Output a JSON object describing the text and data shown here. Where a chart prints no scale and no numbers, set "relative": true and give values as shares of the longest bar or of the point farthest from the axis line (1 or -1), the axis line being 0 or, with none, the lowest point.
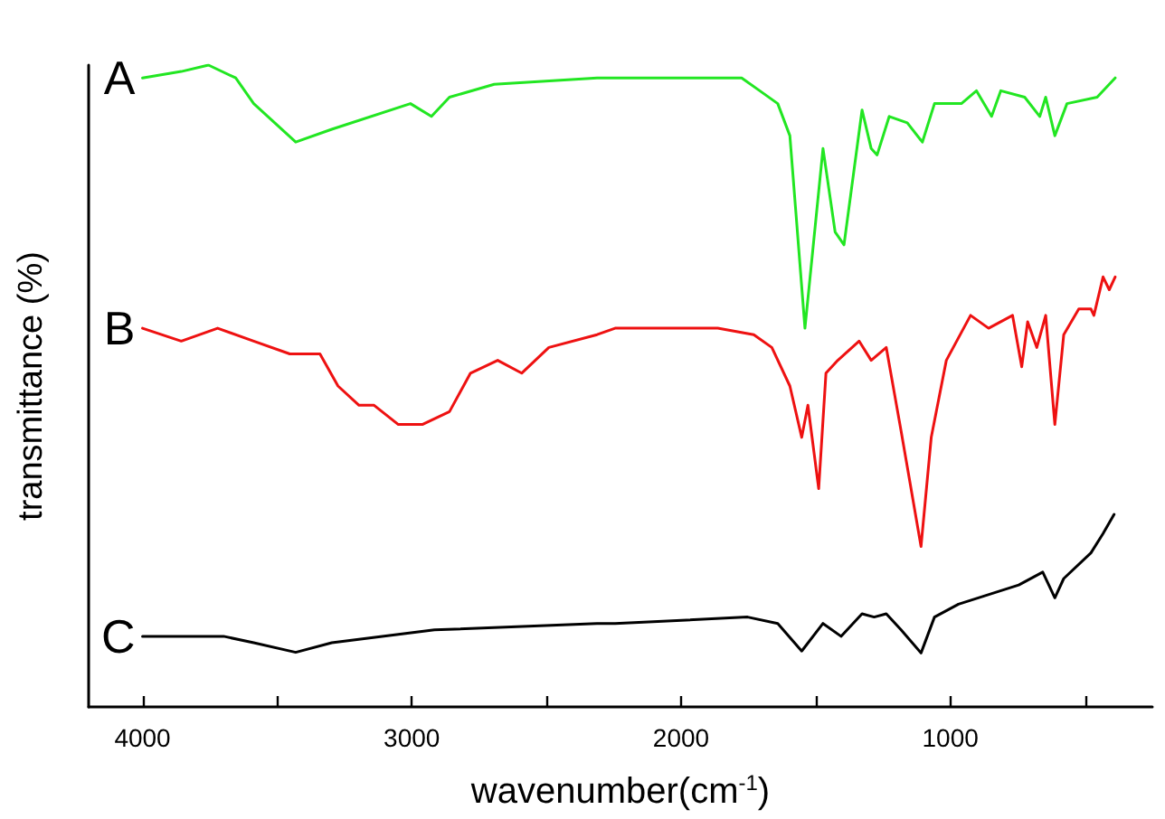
{
  "chart_data": {
    "type": "line",
    "relative": true,
    "xlabel": "wavenumber(cm$^{-1}$)",
    "ylabel": "transmittance (%)",
    "xlim": [
      4200,
      250
    ],
    "xticks": [
      4000,
      {
        "value": 3500,
        "label": null
      },
      3000,
      {
        "value": 2500,
        "label": null
      },
      2000,
      {
        "value": 1500,
        "label": null
      },
      1000,
      {
        "value": 500,
        "label": null
      }
    ],
    "grid": false,
    "legend": false,
    "marker": "none",
    "line_style": "solid",
    "series": [
      {
        "name": "A",
        "color": "#22e622",
        "x": [
          4000,
          3856,
          3755,
          3654,
          3587,
          3431,
          3297,
          3005,
          2927,
          2860,
          2694,
          2312,
          2245,
          1775,
          1708,
          1641,
          1596,
          1540,
          1473,
          1428,
          1395,
          1328,
          1294,
          1272,
          1227,
          1160,
          1104,
          1059,
          959,
          903,
          847,
          813,
          724,
          668,
          646,
          612,
          567,
          455,
          388
        ],
        "values": [
          0.98,
          0.99,
          1.0,
          0.98,
          0.94,
          0.88,
          0.9,
          0.94,
          0.92,
          0.95,
          0.97,
          0.98,
          0.98,
          0.98,
          0.96,
          0.94,
          0.89,
          0.59,
          0.87,
          0.74,
          0.72,
          0.93,
          0.87,
          0.86,
          0.92,
          0.91,
          0.88,
          0.94,
          0.94,
          0.96,
          0.92,
          0.96,
          0.95,
          0.92,
          0.95,
          0.89,
          0.94,
          0.95,
          0.98
        ]
      },
      {
        "name": "B",
        "color": "#ee1111",
        "x": [
          4000,
          3856,
          3721,
          3587,
          3453,
          3341,
          3274,
          3196,
          3140,
          3050,
          2961,
          2860,
          2782,
          2681,
          2592,
          2491,
          2312,
          2245,
          1864,
          1730,
          1663,
          1596,
          1552,
          1529,
          1489,
          1462,
          1418,
          1339,
          1294,
          1238,
          1183,
          1109,
          1071,
          1015,
          925,
          858,
          769,
          735,
          713,
          679,
          646,
          612,
          579,
          523,
          478,
          467,
          433,
          410,
          388
        ],
        "values": [
          0.59,
          0.57,
          0.59,
          0.57,
          0.55,
          0.55,
          0.5,
          0.47,
          0.47,
          0.44,
          0.44,
          0.46,
          0.52,
          0.54,
          0.52,
          0.56,
          0.58,
          0.59,
          0.59,
          0.58,
          0.56,
          0.5,
          0.42,
          0.47,
          0.34,
          0.52,
          0.54,
          0.57,
          0.54,
          0.56,
          0.43,
          0.25,
          0.42,
          0.54,
          0.61,
          0.59,
          0.61,
          0.53,
          0.6,
          0.56,
          0.61,
          0.44,
          0.58,
          0.62,
          0.62,
          0.61,
          0.67,
          0.65,
          0.67
        ]
      },
      {
        "name": "C",
        "color": "#000000",
        "x": [
          4000,
          3699,
          3587,
          3431,
          3297,
          2916,
          2312,
          2245,
          1753,
          1641,
          1552,
          1473,
          1406,
          1328,
          1283,
          1238,
          1183,
          1109,
          1059,
          970,
          746,
          657,
          612,
          579,
          478,
          433,
          392
        ],
        "values": [
          0.11,
          0.11,
          0.1,
          0.085,
          0.1,
          0.12,
          0.13,
          0.13,
          0.14,
          0.13,
          0.087,
          0.13,
          0.11,
          0.145,
          0.14,
          0.145,
          0.12,
          0.084,
          0.14,
          0.16,
          0.19,
          0.21,
          0.17,
          0.2,
          0.24,
          0.27,
          0.3
        ]
      }
    ]
  }
}
